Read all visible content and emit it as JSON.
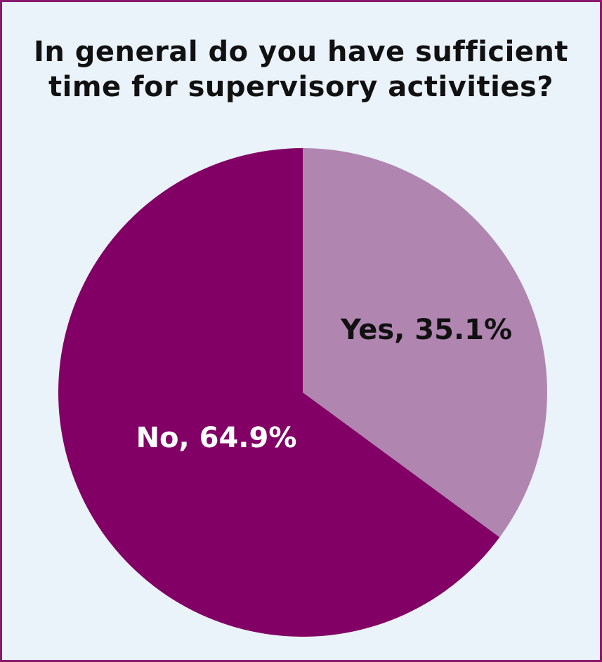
{
  "chart_data": {
    "type": "pie",
    "title_lines": [
      "In general do you have sufficient",
      "time for supervisory activities?"
    ],
    "categories": [
      "Yes",
      "No"
    ],
    "values": [
      35.1,
      64.9
    ],
    "labels": [
      "Yes, 35.1%",
      "No, 64.9%"
    ],
    "colors": [
      "#b086b1",
      "#820065"
    ],
    "label_colors": [
      "#111111",
      "#ffffff"
    ],
    "start": "12 o'clock",
    "direction": "clockwise"
  }
}
